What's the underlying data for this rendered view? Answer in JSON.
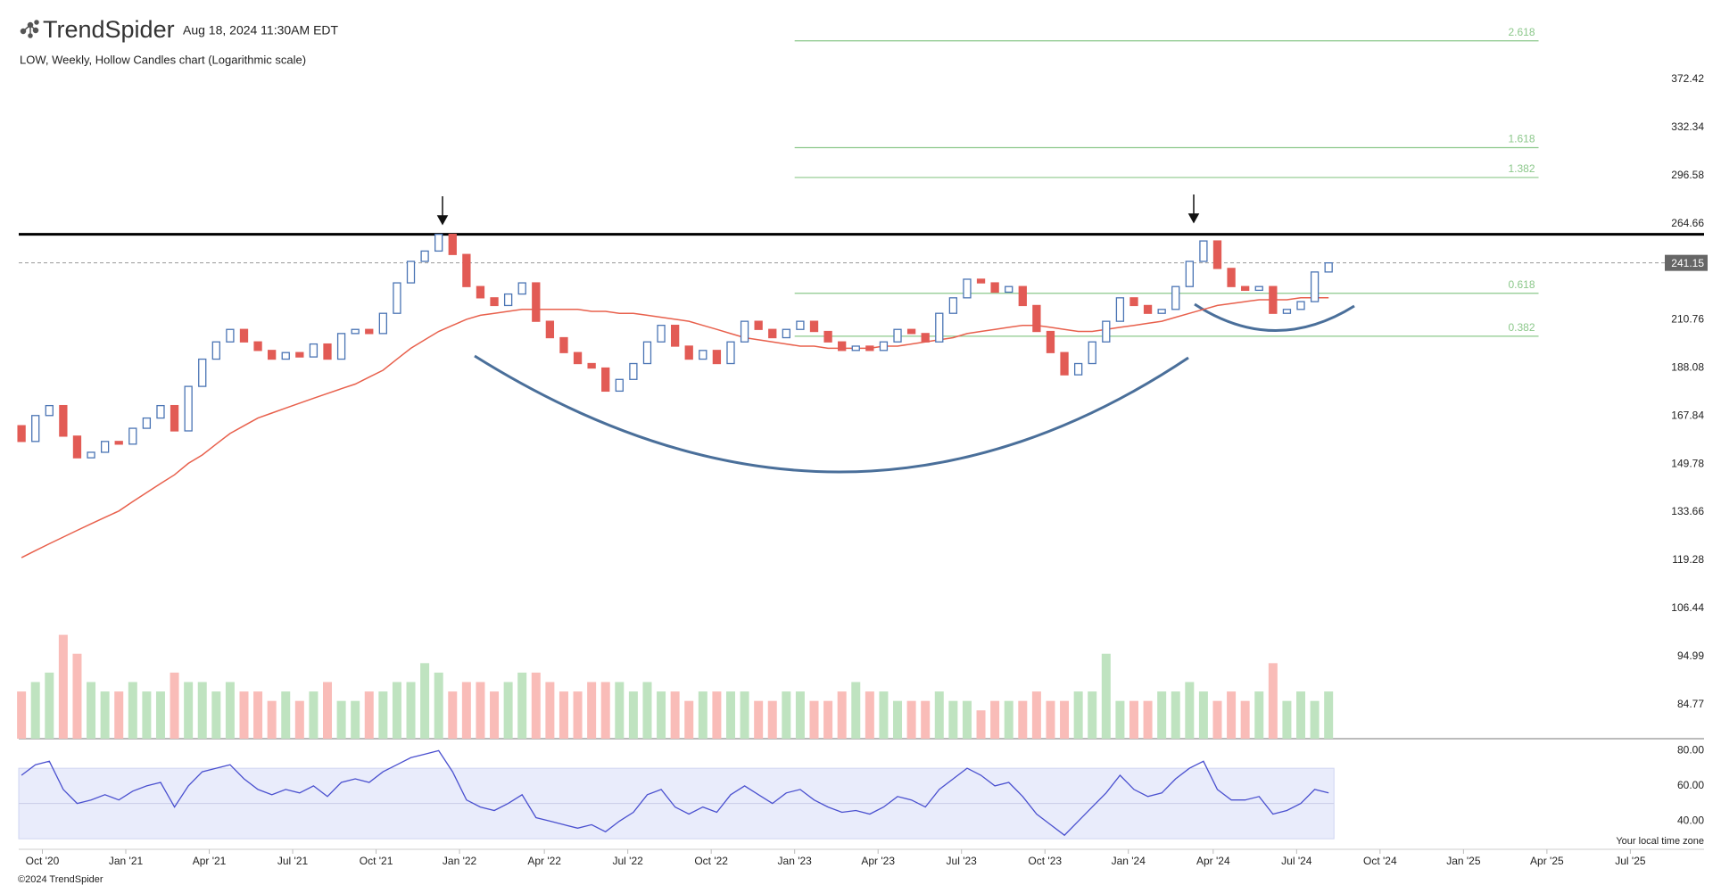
{
  "header": {
    "logo": "TrendSpider",
    "timestamp": "Aug 18, 2024 11:30AM EDT",
    "footer": "©2024 TrendSpider"
  },
  "chart_data": {
    "type": "candlestick",
    "title": "LOW, Weekly, Hollow Candles chart (Logarithmic scale)",
    "open": [
      164,
      158,
      168,
      172,
      160,
      152,
      154,
      158,
      157,
      163,
      167,
      172,
      162,
      180,
      192,
      200,
      206,
      200,
      196,
      192,
      195,
      193,
      199,
      192,
      204,
      206,
      204,
      214,
      230,
      242,
      248,
      258,
      246,
      228,
      222,
      218,
      224,
      230,
      210,
      202,
      195,
      190,
      188,
      178,
      183,
      190,
      200,
      208,
      198,
      192,
      196,
      190,
      200,
      210,
      206,
      202,
      206,
      210,
      205,
      200,
      196,
      198,
      196,
      200,
      206,
      204,
      200,
      214,
      222,
      232,
      230,
      225,
      228,
      218,
      205,
      195,
      185,
      190,
      200,
      210,
      222,
      218,
      214,
      216,
      228,
      242,
      254,
      238,
      228,
      226,
      228,
      214,
      216,
      220,
      236
    ],
    "close": [
      158,
      168,
      172,
      160,
      152,
      154,
      158,
      157,
      163,
      167,
      172,
      162,
      180,
      192,
      200,
      206,
      200,
      196,
      192,
      195,
      193,
      199,
      192,
      204,
      206,
      204,
      214,
      230,
      242,
      248,
      258,
      246,
      228,
      222,
      218,
      224,
      230,
      210,
      202,
      195,
      190,
      188,
      178,
      183,
      190,
      200,
      208,
      198,
      192,
      196,
      190,
      200,
      210,
      206,
      202,
      206,
      210,
      205,
      200,
      196,
      198,
      196,
      200,
      206,
      204,
      200,
      214,
      222,
      232,
      230,
      225,
      228,
      218,
      205,
      195,
      185,
      190,
      200,
      210,
      222,
      218,
      214,
      216,
      228,
      242,
      254,
      238,
      228,
      226,
      228,
      214,
      216,
      220,
      236,
      241.15
    ],
    "up_color": "#4a74b4",
    "down_color": "#e25b55",
    "log_scale": true,
    "ylim": [
      80,
      420
    ],
    "yticks": [
      372.42,
      332.34,
      296.58,
      264.66,
      210.76,
      188.08,
      167.84,
      149.78,
      133.66,
      119.28,
      106.44,
      94.99,
      84.77
    ],
    "xlim": [
      -0.2,
      121
    ],
    "xticks": [
      {
        "value": 1.5,
        "label": "Oct '20"
      },
      {
        "value": 7.5,
        "label": "Jan '21"
      },
      {
        "value": 13.5,
        "label": "Apr '21"
      },
      {
        "value": 19.5,
        "label": "Jul '21"
      },
      {
        "value": 25.5,
        "label": "Oct '21"
      },
      {
        "value": 31.5,
        "label": "Jan '22"
      },
      {
        "value": 37.6,
        "label": "Apr '22"
      },
      {
        "value": 43.6,
        "label": "Jul '22"
      },
      {
        "value": 49.6,
        "label": "Oct '22"
      },
      {
        "value": 55.6,
        "label": "Jan '23"
      },
      {
        "value": 61.6,
        "label": "Apr '23"
      },
      {
        "value": 67.6,
        "label": "Jul '23"
      },
      {
        "value": 73.6,
        "label": "Oct '23"
      },
      {
        "value": 79.6,
        "label": "Jan '24"
      },
      {
        "value": 85.7,
        "label": "Apr '24"
      },
      {
        "value": 91.7,
        "label": "Jul '24"
      },
      {
        "value": 97.7,
        "label": "Oct '24"
      },
      {
        "value": 103.7,
        "label": "Jan '25"
      },
      {
        "value": 109.7,
        "label": "Apr '25"
      },
      {
        "value": 115.7,
        "label": "Jul '25"
      }
    ],
    "ma": {
      "color": "#e8604c",
      "values": [
        120,
        122,
        124,
        126,
        128,
        130,
        132,
        134,
        137,
        140,
        143,
        146,
        150,
        153,
        157,
        161,
        164,
        167,
        169,
        171,
        173,
        175,
        177,
        179,
        181,
        184,
        187,
        192,
        197,
        201,
        205,
        208,
        211,
        213,
        214,
        215,
        216,
        216,
        216,
        216,
        216,
        215,
        215,
        214,
        214,
        213,
        212,
        211,
        210,
        208,
        206,
        204,
        202,
        201,
        200,
        199,
        198,
        198,
        197,
        197,
        197,
        197,
        198,
        198,
        199,
        200,
        201,
        202,
        204,
        205,
        206,
        207,
        208,
        208,
        207,
        206,
        205,
        205,
        206,
        207,
        208,
        209,
        210,
        212,
        214,
        216,
        218,
        219,
        220,
        221,
        221,
        221,
        222,
        222,
        222
      ]
    },
    "resistance": 258,
    "fib_levels": {
      "from": 55.6,
      "to": 109.1,
      "color": "#8cc88b",
      "levels": [
        {
          "ratio": 2.618,
          "value": 408
        },
        {
          "ratio": 1.618,
          "value": 316.8
        },
        {
          "ratio": 1.382,
          "value": 295.2
        },
        {
          "ratio": 0.618,
          "value": 224.4
        },
        {
          "ratio": 0.382,
          "value": 202.7
        }
      ]
    },
    "volume": {
      "ylim": [
        0,
        12
      ],
      "up_color": "#bfe3c0",
      "down_color": "#f9bcb8",
      "values": [
        5,
        6,
        7,
        11,
        9,
        6,
        5,
        5,
        6,
        5,
        5,
        7,
        6,
        6,
        5,
        6,
        5,
        5,
        4,
        5,
        4,
        5,
        6,
        4,
        4,
        5,
        5,
        6,
        6,
        8,
        7,
        5,
        6,
        6,
        5,
        6,
        7,
        7,
        6,
        5,
        5,
        6,
        6,
        6,
        5,
        6,
        5,
        5,
        4,
        5,
        5,
        5,
        5,
        4,
        4,
        5,
        5,
        4,
        4,
        5,
        6,
        5,
        5,
        4,
        4,
        4,
        5,
        4,
        4,
        3,
        4,
        4,
        4,
        5,
        4,
        4,
        5,
        5,
        9,
        4,
        4,
        4,
        5,
        5,
        6,
        5,
        4,
        5,
        4,
        5,
        8,
        4,
        5,
        4,
        5
      ]
    },
    "rsi": {
      "color": "#4a50cf",
      "ylim": [
        24,
        84
      ],
      "band": [
        30,
        70
      ],
      "midline": 50,
      "yticks": [
        {
          "value": 80,
          "label": "80.00"
        },
        {
          "value": 60,
          "label": "60.00"
        },
        {
          "value": 40,
          "label": "40.00"
        }
      ],
      "values": [
        66,
        72,
        74,
        58,
        50,
        52,
        55,
        52,
        57,
        60,
        62,
        48,
        60,
        68,
        70,
        72,
        64,
        58,
        55,
        58,
        56,
        60,
        54,
        62,
        64,
        62,
        68,
        72,
        76,
        78,
        80,
        68,
        52,
        48,
        46,
        50,
        55,
        42,
        40,
        38,
        36,
        38,
        34,
        40,
        45,
        55,
        58,
        48,
        44,
        48,
        45,
        55,
        60,
        55,
        50,
        56,
        58,
        52,
        48,
        45,
        46,
        44,
        48,
        54,
        52,
        48,
        58,
        64,
        70,
        66,
        60,
        62,
        54,
        44,
        38,
        32,
        40,
        48,
        56,
        66,
        58,
        54,
        56,
        64,
        70,
        74,
        58,
        52,
        52,
        54,
        44,
        46,
        50,
        58,
        56
      ]
    },
    "timezone_note": "Your local time zone"
  }
}
